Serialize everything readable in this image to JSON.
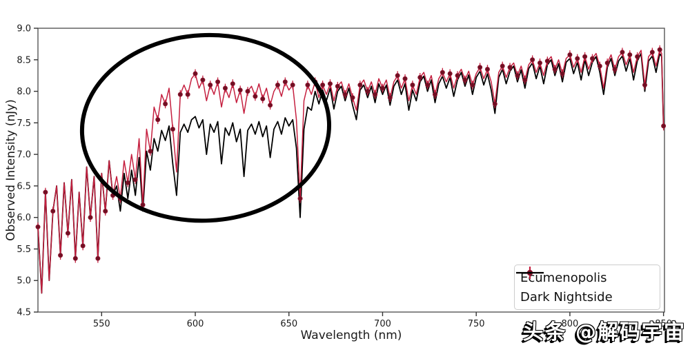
{
  "watermark": {
    "text": "头条 @解码宇宙"
  },
  "chart_data": {
    "type": "line",
    "title": "",
    "xlabel": "Wavelength (nm)",
    "ylabel": "Observed Intensity (nJy)",
    "xlim": [
      516,
      850.5
    ],
    "ylim": [
      4.5,
      9.0
    ],
    "grid": false,
    "xticks": [
      "550",
      "600",
      "650",
      "700",
      "750",
      "800",
      "850"
    ],
    "xtick_values": [
      550,
      600,
      650,
      700,
      750,
      800,
      850
    ],
    "yticks": [
      "4.5",
      "5.0",
      "5.5",
      "6.0",
      "6.5",
      "7.0",
      "7.5",
      "8.0",
      "8.5",
      "9.0"
    ],
    "ytick_values": [
      4.5,
      5.0,
      5.5,
      6.0,
      6.5,
      7.0,
      7.5,
      8.0,
      8.5,
      9.0
    ],
    "legend": {
      "position": "lower right",
      "entries": [
        {
          "label": "Ecumenopolis",
          "color": "#c51f3f",
          "marker": "errorbar-dot"
        },
        {
          "label": "Dark Nightside",
          "color": "#000000",
          "marker": "line"
        }
      ]
    },
    "annotation": {
      "type": "ellipse",
      "x_center": 605.5,
      "y_center": 7.42,
      "x_radius": 66,
      "y_radius": 1.47,
      "rotation_deg": -3,
      "color": "#000000",
      "linewidth": 6
    },
    "x": [
      516,
      518,
      520,
      522,
      524,
      526,
      528,
      530,
      532,
      534,
      536,
      538,
      540,
      542,
      544,
      546,
      548,
      550,
      552,
      554,
      556,
      558,
      560,
      562,
      564,
      566,
      568,
      570,
      572,
      574,
      576,
      578,
      580,
      582,
      584,
      586,
      588,
      590,
      592,
      594,
      596,
      598,
      600,
      602,
      604,
      606,
      608,
      610,
      612,
      614,
      616,
      618,
      620,
      622,
      624,
      626,
      628,
      630,
      632,
      634,
      636,
      638,
      640,
      642,
      644,
      646,
      648,
      650,
      652,
      654,
      656,
      658,
      660,
      662,
      664,
      666,
      668,
      670,
      672,
      674,
      676,
      678,
      680,
      682,
      684,
      686,
      688,
      690,
      692,
      694,
      696,
      698,
      700,
      702,
      704,
      706,
      708,
      710,
      712,
      714,
      716,
      718,
      720,
      722,
      724,
      726,
      728,
      730,
      732,
      734,
      736,
      738,
      740,
      742,
      744,
      746,
      748,
      750,
      752,
      754,
      756,
      758,
      760,
      762,
      764,
      766,
      768,
      770,
      772,
      774,
      776,
      778,
      780,
      782,
      784,
      786,
      788,
      790,
      792,
      794,
      796,
      798,
      800,
      802,
      804,
      806,
      808,
      810,
      812,
      814,
      816,
      818,
      820,
      822,
      824,
      826,
      828,
      830,
      832,
      834,
      836,
      838,
      840,
      842,
      844,
      846,
      848,
      849,
      850
    ],
    "series": [
      {
        "name": "Dark Nightside",
        "color": "#000000",
        "linewidth": 1.8,
        "y": [
          5.85,
          4.8,
          6.4,
          5.0,
          6.1,
          6.5,
          5.4,
          6.55,
          5.75,
          6.6,
          5.35,
          6.4,
          5.55,
          6.8,
          6.0,
          6.65,
          5.35,
          6.7,
          6.1,
          6.9,
          6.35,
          6.5,
          6.1,
          6.7,
          6.3,
          6.75,
          6.35,
          6.95,
          6.1,
          7.05,
          6.75,
          7.25,
          7.05,
          7.38,
          7.22,
          7.45,
          6.85,
          6.35,
          7.35,
          7.48,
          7.35,
          7.55,
          7.6,
          7.42,
          7.55,
          7.0,
          7.48,
          7.35,
          7.52,
          6.85,
          7.42,
          7.3,
          7.5,
          7.2,
          7.4,
          6.65,
          7.38,
          7.48,
          7.32,
          7.52,
          7.28,
          7.45,
          6.95,
          7.4,
          7.52,
          7.32,
          7.58,
          7.45,
          7.55,
          7.1,
          6.0,
          7.4,
          7.75,
          7.7,
          8.0,
          7.8,
          8.02,
          7.85,
          8.05,
          7.72,
          8.0,
          8.08,
          7.85,
          8.05,
          7.78,
          7.55,
          8.02,
          8.1,
          7.9,
          8.08,
          7.82,
          8.12,
          7.95,
          8.1,
          7.78,
          8.08,
          8.18,
          7.95,
          8.12,
          7.7,
          8.02,
          7.85,
          8.15,
          8.24,
          8.0,
          8.18,
          7.82,
          8.12,
          8.24,
          8.05,
          8.22,
          7.92,
          8.18,
          8.3,
          8.08,
          8.26,
          7.95,
          8.22,
          8.32,
          8.1,
          8.28,
          8.02,
          7.65,
          8.22,
          8.35,
          8.12,
          8.32,
          8.4,
          8.15,
          8.34,
          8.05,
          8.36,
          8.45,
          8.2,
          8.4,
          8.12,
          8.42,
          8.5,
          8.25,
          8.44,
          8.15,
          8.46,
          8.52,
          8.28,
          8.46,
          8.18,
          8.5,
          8.25,
          8.46,
          8.55,
          8.3,
          7.95,
          8.38,
          8.52,
          8.25,
          8.48,
          8.56,
          8.32,
          8.52,
          8.18,
          8.48,
          8.6,
          8.0,
          8.48,
          8.56,
          8.3,
          8.6,
          8.55,
          7.45
        ]
      },
      {
        "name": "Ecumenopolis",
        "color": "#c51f3f",
        "linewidth": 1.5,
        "marker_color": "#6e1022",
        "marker_edge": "#8f1430",
        "marker_every": 2,
        "error": 0.07,
        "y": [
          5.85,
          4.8,
          6.4,
          5.0,
          6.1,
          6.5,
          5.4,
          6.55,
          5.75,
          6.6,
          5.35,
          6.4,
          5.55,
          6.8,
          6.0,
          6.65,
          5.35,
          6.7,
          6.1,
          6.9,
          6.35,
          6.65,
          6.3,
          6.9,
          6.55,
          7.0,
          6.6,
          7.25,
          6.2,
          7.4,
          7.05,
          7.75,
          7.55,
          7.95,
          7.8,
          8.05,
          7.4,
          6.72,
          7.95,
          8.1,
          7.95,
          8.2,
          8.28,
          8.05,
          8.18,
          7.85,
          8.1,
          7.95,
          8.15,
          7.75,
          8.05,
          7.9,
          8.12,
          7.82,
          8.02,
          7.65,
          8.0,
          8.08,
          7.92,
          8.12,
          7.88,
          8.05,
          7.78,
          8.0,
          8.1,
          7.92,
          8.15,
          8.02,
          8.1,
          7.55,
          6.3,
          7.85,
          8.1,
          7.95,
          8.15,
          7.9,
          8.1,
          7.95,
          8.12,
          7.85,
          8.08,
          8.15,
          7.95,
          8.12,
          7.9,
          7.7,
          8.1,
          8.18,
          8.0,
          8.15,
          7.95,
          8.2,
          8.05,
          8.18,
          7.9,
          8.15,
          8.25,
          8.05,
          8.2,
          7.85,
          8.1,
          7.95,
          8.22,
          8.3,
          8.1,
          8.25,
          7.95,
          8.2,
          8.3,
          8.15,
          8.28,
          8.05,
          8.25,
          8.35,
          8.18,
          8.32,
          8.1,
          8.28,
          8.38,
          8.2,
          8.35,
          8.15,
          7.8,
          8.3,
          8.4,
          8.22,
          8.38,
          8.45,
          8.25,
          8.4,
          8.18,
          8.42,
          8.5,
          8.3,
          8.45,
          8.25,
          8.48,
          8.55,
          8.35,
          8.5,
          8.28,
          8.52,
          8.58,
          8.38,
          8.52,
          8.3,
          8.55,
          8.35,
          8.52,
          8.6,
          8.4,
          8.05,
          8.45,
          8.58,
          8.35,
          8.55,
          8.62,
          8.42,
          8.58,
          8.3,
          8.55,
          8.65,
          8.1,
          8.55,
          8.62,
          8.4,
          8.66,
          8.6,
          7.45
        ]
      }
    ]
  }
}
